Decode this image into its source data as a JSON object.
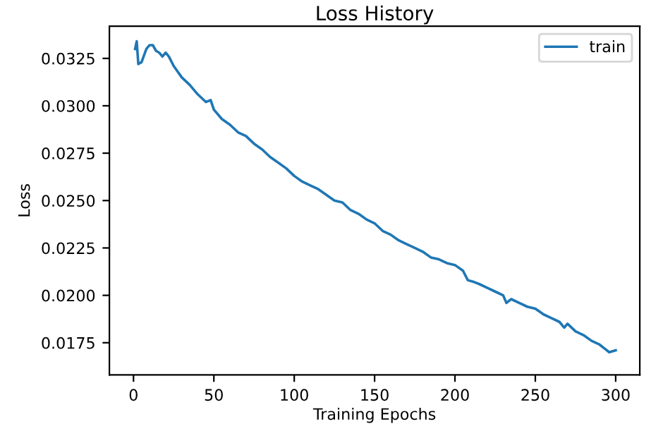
{
  "chart_data": {
    "type": "line",
    "title": "Loss History",
    "xlabel": "Training Epochs",
    "ylabel": "Loss",
    "xlim": [
      -15,
      315
    ],
    "xticks": [
      0,
      50,
      100,
      150,
      200,
      250,
      300
    ],
    "ylim": [
      0.0158,
      0.0342
    ],
    "yticks": [
      {
        "value": 0.0175,
        "label": "0.0175"
      },
      {
        "value": 0.02,
        "label": "0.0200"
      },
      {
        "value": 0.0225,
        "label": "0.0225"
      },
      {
        "value": 0.025,
        "label": "0.0250"
      },
      {
        "value": 0.0275,
        "label": "0.0275"
      },
      {
        "value": 0.03,
        "label": "0.0300"
      },
      {
        "value": 0.0325,
        "label": "0.0325"
      }
    ],
    "legend": "top right",
    "grid": false,
    "series": [
      {
        "name": "train",
        "color": "#1f77b4",
        "x": [
          1,
          2,
          3,
          5,
          8,
          10,
          12,
          14,
          16,
          18,
          20,
          22,
          25,
          30,
          35,
          40,
          45,
          48,
          50,
          55,
          60,
          65,
          70,
          75,
          80,
          85,
          90,
          95,
          100,
          105,
          110,
          115,
          120,
          125,
          130,
          135,
          140,
          145,
          150,
          155,
          160,
          165,
          170,
          175,
          180,
          185,
          190,
          195,
          200,
          205,
          208,
          212,
          215,
          220,
          225,
          230,
          232,
          235,
          240,
          245,
          250,
          255,
          260,
          265,
          268,
          270,
          275,
          280,
          285,
          290,
          293,
          296,
          300
        ],
        "values": [
          0.033,
          0.0334,
          0.0322,
          0.0323,
          0.033,
          0.0332,
          0.0332,
          0.0329,
          0.0328,
          0.0326,
          0.0328,
          0.0326,
          0.0321,
          0.0315,
          0.0311,
          0.0306,
          0.0302,
          0.0303,
          0.0298,
          0.0293,
          0.029,
          0.0286,
          0.0284,
          0.028,
          0.0277,
          0.0273,
          0.027,
          0.0267,
          0.0263,
          0.026,
          0.0258,
          0.0256,
          0.0253,
          0.025,
          0.0249,
          0.0245,
          0.0243,
          0.024,
          0.0238,
          0.0234,
          0.0232,
          0.0229,
          0.0227,
          0.0225,
          0.0223,
          0.022,
          0.0219,
          0.0217,
          0.0216,
          0.0213,
          0.0208,
          0.0207,
          0.0206,
          0.0204,
          0.0202,
          0.02,
          0.0196,
          0.0198,
          0.0196,
          0.0194,
          0.0193,
          0.019,
          0.0188,
          0.0186,
          0.0183,
          0.0185,
          0.0181,
          0.0179,
          0.0176,
          0.0174,
          0.0172,
          0.017,
          0.0171
        ]
      }
    ]
  }
}
